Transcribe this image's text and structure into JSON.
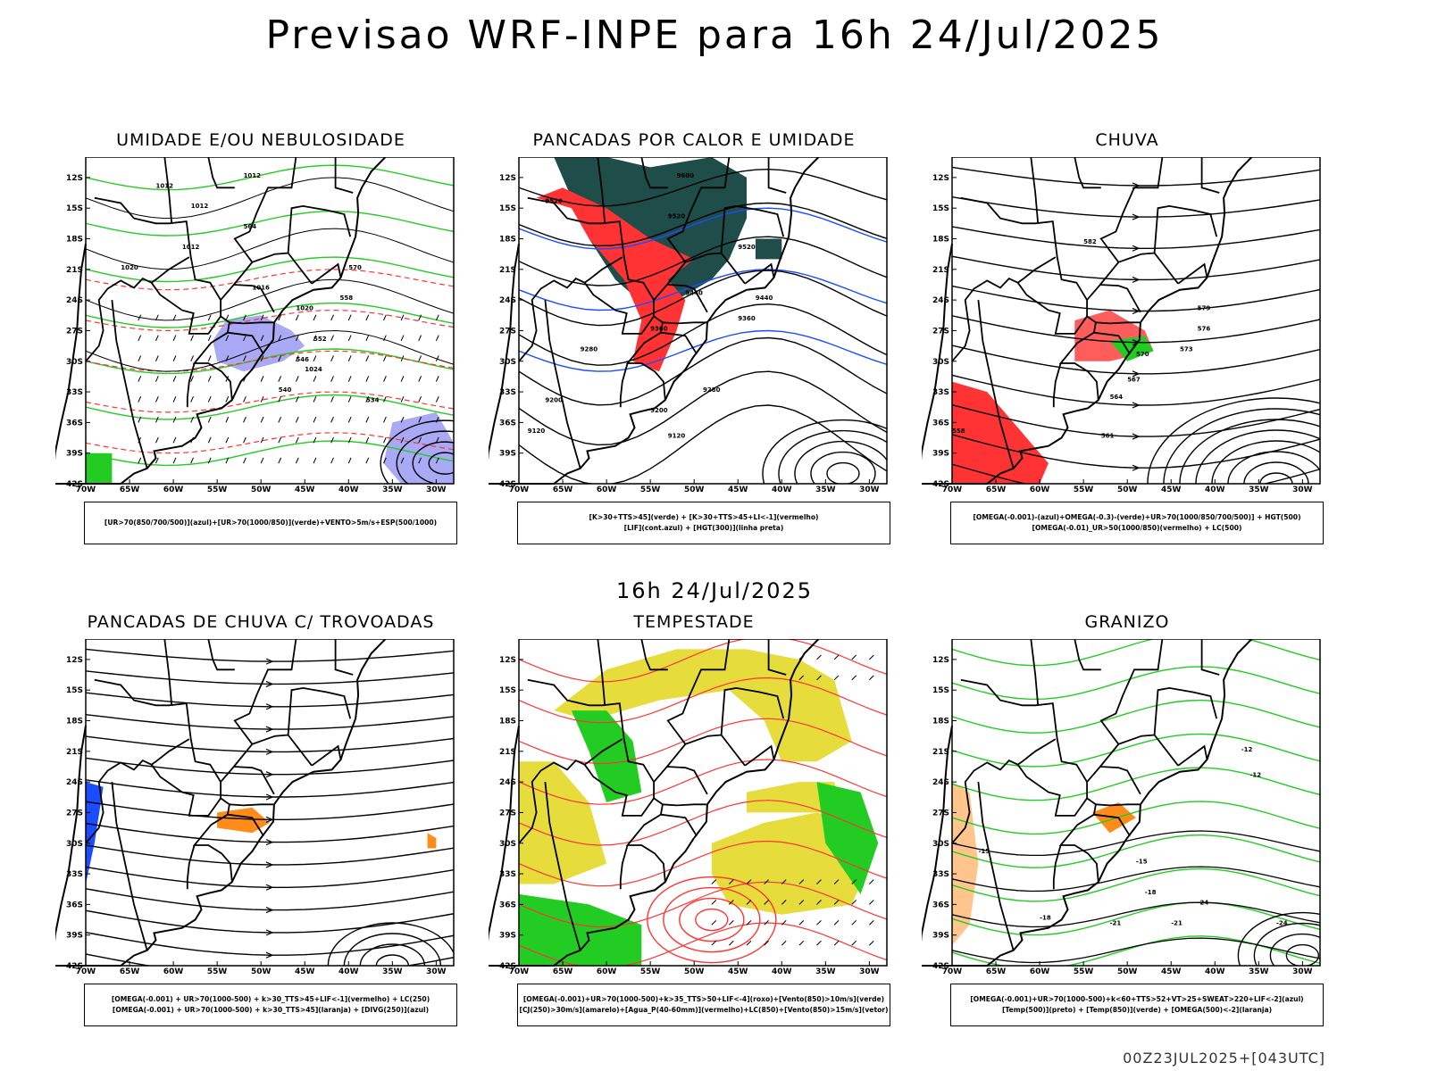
{
  "main_title": "Previsao WRF-INPE  para 16h 24/Jul/2025",
  "mid_date": "16h 24/Jul/2025",
  "footer": "00Z23JUL2025+[043UTC]",
  "axes": {
    "lat_labels": [
      "12S",
      "15S",
      "18S",
      "21S",
      "24S",
      "27S",
      "30S",
      "33S",
      "36S",
      "39S",
      "42S"
    ],
    "lon_labels": [
      "70W",
      "65W",
      "60W",
      "55W",
      "50W",
      "45W",
      "40W",
      "35W",
      "30W"
    ]
  },
  "colors": {
    "humid_blue": "#a9a9f5",
    "red": "#ff3333",
    "green": "#22cc22",
    "dark_teal": "#1e4d4a",
    "yellow": "#e6dc3c",
    "orange": "#ff8c1a",
    "blue": "#1a4dff"
  },
  "panels": [
    {
      "title": "UMIDADE E/OU NEBULOSIDADE",
      "legend": [
        "[UR>70(850/700/500)](azul)+[UR>70(1000/850)](verde)+VENTO>5m/s+ESP(500/1000)"
      ],
      "contour_labels": [
        "1012",
        "1012",
        "1012",
        "1012",
        "1016",
        "1020",
        "1020",
        "1024",
        "570",
        "564",
        "558",
        "552",
        "546",
        "540",
        "534"
      ]
    },
    {
      "title": "PANCADAS POR CALOR E UMIDADE",
      "legend": [
        "[K>30+TTS>45](verde) + [K>30+TTS>45+LI<-1](vermelho)",
        "[LIF](cont.azul) + [HGT(300)](linha preta)"
      ],
      "contour_labels": [
        "9600",
        "9520",
        "9520",
        "9520",
        "9440",
        "9440",
        "9360",
        "9360",
        "9280",
        "9280",
        "9200",
        "9200",
        "9120",
        "9120"
      ]
    },
    {
      "title": "CHUVA",
      "legend": [
        "[OMEGA(-0.001)-(azul)+OMEGA(-0.3)-(verde)+UR>70(1000/850/700/500)] + HGT(500)",
        "[OMEGA(-0.01)_UR>50(1000/850)(vermelho) + LC(500)"
      ],
      "contour_labels": [
        "582",
        "579",
        "576",
        "573",
        "570",
        "567",
        "564",
        "561",
        "558"
      ]
    },
    {
      "title": "PANCADAS DE CHUVA C/ TROVOADAS",
      "legend": [
        "[OMEGA(-0.001) + UR>70(1000-500) + k>30_TTS>45+LIF<-1](vermelho) + LC(250)",
        "[OMEGA(-0.001) + UR>70(1000-500) + k>30_TTS>45](laranja) + [DIVG(250)](azul)"
      ],
      "contour_labels": []
    },
    {
      "title": "TEMPESTADE",
      "legend": [
        "[OMEGA(-0.001)+UR>70(1000-500)+k>35_TTS>50+LIF<-4](roxo)+[Vento(850)>10m/s](verde)",
        "[CJ(250)>30m/s](amarelo)+[Agua_P(40-60mm)](vermelho)+LC(850)+[Vento(850)>15m/s](vetor)"
      ],
      "contour_labels": []
    },
    {
      "title": "GRANIZO",
      "legend": [
        "[OMEGA(-0.001)+UR>70(1000-500)+k<60+TTS>52+VT>25+SWEAT>220+LIF<-2](azul)",
        "[Temp(500)](preto) + [Temp(850)](verde) + [OMEGA(500)<-2](laranja)"
      ],
      "contour_labels": [
        "-12",
        "-12",
        "-15",
        "-15",
        "-18",
        "-18",
        "-21",
        "-21",
        "-24",
        "-24"
      ]
    }
  ]
}
